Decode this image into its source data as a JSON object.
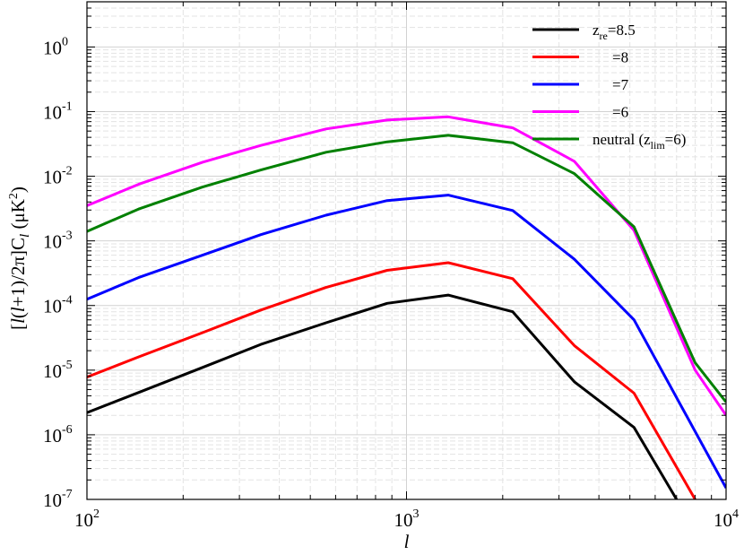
{
  "chart_data": {
    "type": "line",
    "title": "",
    "xlabel": "l",
    "ylabel": "[l(l+1)/2π]C_l (μK^2)",
    "ylabel_parts": {
      "open": "[",
      "l1": "l",
      "mid": "(",
      "l2": "l",
      "rest": "+1)/2π]C",
      "sub": "l",
      "unit": " (μK",
      "sup": "2",
      "close": ")"
    },
    "xscale": "log",
    "yscale": "log",
    "xlim": [
      100,
      10000
    ],
    "ylim": [
      1e-07,
      5
    ],
    "grid": true,
    "legend_position": "top-right",
    "x_ticks": [
      {
        "value": 100,
        "base": "10",
        "exp": "2"
      },
      {
        "value": 1000,
        "base": "10",
        "exp": "3"
      },
      {
        "value": 10000,
        "base": "10",
        "exp": "4"
      }
    ],
    "y_ticks": [
      {
        "value": 1e-07,
        "base": "10",
        "exp": "-7"
      },
      {
        "value": 1e-06,
        "base": "10",
        "exp": "-6"
      },
      {
        "value": 1e-05,
        "base": "10",
        "exp": "-5"
      },
      {
        "value": 0.0001,
        "base": "10",
        "exp": "-4"
      },
      {
        "value": 0.001,
        "base": "10",
        "exp": "-3"
      },
      {
        "value": 0.01,
        "base": "10",
        "exp": "-2"
      },
      {
        "value": 0.1,
        "base": "10",
        "exp": "-1"
      },
      {
        "value": 1,
        "base": "10",
        "exp": "0"
      }
    ],
    "series": [
      {
        "legend": {
          "pre": "z",
          "sub": "re",
          "post": "=8.5"
        },
        "color": "#000000",
        "x": [
          100,
          145,
          230,
          350,
          560,
          870,
          1350,
          2150,
          3350,
          5150,
          7000
        ],
        "values": [
          2.2e-06,
          4.5e-06,
          1.1e-05,
          2.5e-05,
          5.4e-05,
          0.000108,
          0.000145,
          8e-05,
          6.6e-06,
          1.3e-06,
          1e-07
        ]
      },
      {
        "legend": {
          "pre": "",
          "sub": "",
          "post": "=8"
        },
        "color": "#ff0000",
        "x": [
          100,
          145,
          230,
          350,
          560,
          870,
          1350,
          2150,
          3350,
          5150,
          8000
        ],
        "values": [
          7.8e-06,
          1.6e-05,
          3.8e-05,
          8.5e-05,
          0.00019,
          0.00035,
          0.00046,
          0.00026,
          2.4e-05,
          4.4e-06,
          1e-07
        ]
      },
      {
        "legend": {
          "pre": "",
          "sub": "",
          "post": "=7"
        },
        "color": "#0000ff",
        "x": [
          100,
          145,
          230,
          350,
          560,
          870,
          1350,
          2150,
          3350,
          5150,
          10000
        ],
        "values": [
          0.000125,
          0.00027,
          0.0006,
          0.00125,
          0.0025,
          0.0042,
          0.0051,
          0.00295,
          0.00052,
          6e-05,
          1.5e-07
        ]
      },
      {
        "legend": {
          "pre": "",
          "sub": "",
          "post": "=6"
        },
        "color": "#ff00ff",
        "x": [
          100,
          145,
          230,
          350,
          560,
          870,
          1350,
          2150,
          3350,
          5150,
          8000,
          10000
        ],
        "values": [
          0.0035,
          0.0075,
          0.0165,
          0.03,
          0.054,
          0.074,
          0.083,
          0.056,
          0.017,
          0.00145,
          1e-05,
          2e-06
        ]
      },
      {
        "legend": {
          "pre": "neutral (z",
          "sub": "lim",
          "post": "=6)"
        },
        "color": "#008000",
        "x": [
          100,
          145,
          230,
          350,
          560,
          870,
          1350,
          2150,
          3350,
          5150,
          8000,
          10000
        ],
        "values": [
          0.0014,
          0.0031,
          0.0068,
          0.0125,
          0.0235,
          0.034,
          0.043,
          0.033,
          0.011,
          0.00165,
          1.3e-05,
          3.2e-06
        ]
      }
    ]
  }
}
